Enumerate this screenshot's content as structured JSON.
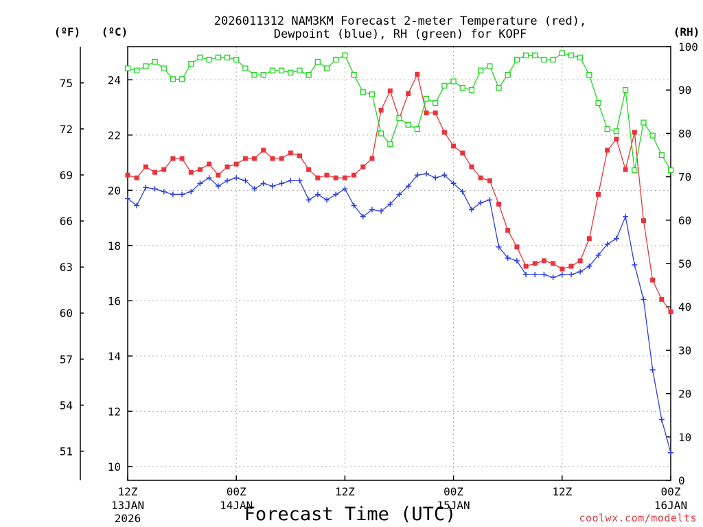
{
  "chart_data": {
    "type": "line",
    "title_line1": "2026011312 NAM3KM Forecast 2-meter Temperature (red),",
    "title_line2": "Dewpoint (blue), RH (green) for KOPF",
    "units": {
      "fahrenheit": "(ºF)",
      "celsius": "(ºC)",
      "rh": "(RH)"
    },
    "xlabel": "Forecast Time (UTC)",
    "credit": "coolwx.com/modelts",
    "x_range_hours": [
      0,
      60
    ],
    "y_celsius_range": [
      9.5,
      25.2
    ],
    "y_rh_range": [
      0,
      100
    ],
    "grid": true,
    "x_ticks": [
      {
        "hour": 0,
        "l1": "12Z",
        "l2": "13JAN",
        "l3": "2026"
      },
      {
        "hour": 12,
        "l1": "00Z",
        "l2": "14JAN",
        "l3": ""
      },
      {
        "hour": 24,
        "l1": "12Z",
        "l2": "",
        "l3": ""
      },
      {
        "hour": 36,
        "l1": "00Z",
        "l2": "15JAN",
        "l3": ""
      },
      {
        "hour": 48,
        "l1": "12Z",
        "l2": "",
        "l3": ""
      },
      {
        "hour": 60,
        "l1": "00Z",
        "l2": "16JAN",
        "l3": ""
      }
    ],
    "y_left_celsius_ticks": [
      "10",
      "12",
      "14",
      "16",
      "18",
      "20",
      "22",
      "24"
    ],
    "y_left_fahrenheit_ticks": [
      "51",
      "54",
      "57",
      "60",
      "63",
      "66",
      "69",
      "72",
      "75"
    ],
    "y_right_rh_ticks": [
      "0",
      "10",
      "20",
      "30",
      "40",
      "50",
      "60",
      "70",
      "80",
      "90",
      "100"
    ],
    "series": [
      {
        "name": "Temperature",
        "unit": "C",
        "color": "#e8343a",
        "marker": "filled-square",
        "values": [
          20.55,
          20.45,
          20.85,
          20.65,
          20.75,
          21.15,
          21.15,
          20.65,
          20.75,
          20.95,
          20.55,
          20.85,
          20.95,
          21.15,
          21.15,
          21.45,
          21.15,
          21.15,
          21.35,
          21.25,
          20.75,
          20.45,
          20.55,
          20.45,
          20.45,
          20.55,
          20.85,
          21.15,
          22.9,
          23.6,
          22.6,
          23.5,
          24.2,
          22.8,
          22.8,
          22.1,
          21.6,
          21.35,
          20.85,
          20.45,
          20.35,
          19.5,
          18.55,
          17.95,
          17.25,
          17.35,
          17.45,
          17.35,
          17.15,
          17.25,
          17.45,
          18.25,
          19.85,
          21.45,
          21.85,
          20.75,
          22.1,
          18.9,
          16.75,
          16.05,
          15.6
        ],
        "points_note": "hourly from 12Z 13JAN (hour 0) to 00Z 16JAN (hour 60)"
      },
      {
        "name": "Dewpoint",
        "unit": "C",
        "color": "#2b3fe0",
        "marker": "plus",
        "values": [
          19.7,
          19.45,
          20.1,
          20.05,
          19.95,
          19.85,
          19.85,
          19.95,
          20.25,
          20.45,
          20.15,
          20.35,
          20.45,
          20.35,
          20.05,
          20.25,
          20.15,
          20.25,
          20.35,
          20.35,
          19.65,
          19.85,
          19.65,
          19.85,
          20.05,
          19.45,
          19.05,
          19.3,
          19.25,
          19.5,
          19.85,
          20.15,
          20.55,
          20.6,
          20.45,
          20.55,
          20.25,
          19.95,
          19.3,
          19.55,
          19.65,
          17.95,
          17.55,
          17.45,
          16.95,
          16.95,
          16.95,
          16.85,
          16.95,
          16.95,
          17.05,
          17.25,
          17.65,
          18.05,
          18.25,
          19.05,
          17.3,
          16.05,
          13.5,
          11.7,
          10.5
        ],
        "points_note": "hourly from 12Z 13JAN (hour 0) to 00Z 16JAN (hour 60)"
      },
      {
        "name": "Relative Humidity",
        "unit": "%",
        "color": "#1fd61f",
        "marker": "open-square",
        "values": [
          95,
          94.5,
          95.5,
          96.5,
          95,
          92.5,
          92.5,
          96,
          97.5,
          97,
          97.5,
          97.5,
          97,
          95,
          93.5,
          93.5,
          94.5,
          94.5,
          94,
          94.5,
          93.5,
          96.5,
          95,
          97,
          98,
          93.5,
          89.5,
          89,
          80,
          77.5,
          83.5,
          82,
          81,
          88,
          87,
          91,
          92,
          90.5,
          90,
          94.5,
          95.5,
          90.5,
          93.5,
          97,
          98,
          98,
          97,
          97,
          98.5,
          98,
          97.5,
          93.5,
          87,
          81,
          80.5,
          90,
          71.5,
          82.5,
          79.5,
          75,
          71.5
        ],
        "points_note": "hourly from 12Z 13JAN (hour 0) to 00Z 16JAN (hour 60)"
      }
    ]
  }
}
